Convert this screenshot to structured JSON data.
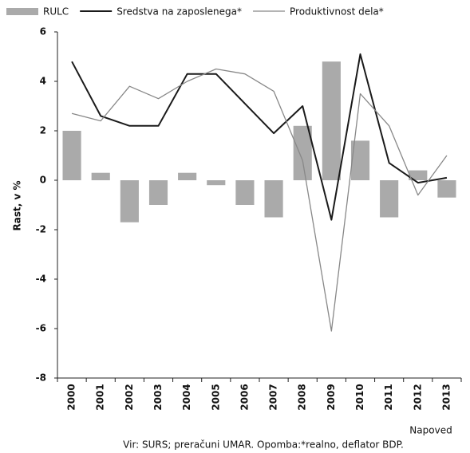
{
  "chart_data": {
    "type": "bar_line",
    "categories": [
      "2000",
      "2001",
      "2002",
      "2003",
      "2004",
      "2005",
      "2006",
      "2007",
      "2008",
      "2009",
      "2010",
      "2011",
      "2012",
      "2013"
    ],
    "series": [
      {
        "name": "RULC",
        "type": "bar",
        "color": "#aaaaaa",
        "values": [
          2.0,
          0.3,
          -1.7,
          -1.0,
          0.3,
          -0.2,
          -1.0,
          -1.5,
          2.2,
          4.8,
          1.6,
          -1.5,
          0.4,
          -0.7
        ]
      },
      {
        "name": "Sredstva na zaposlenega*",
        "type": "line",
        "color": "#1a1a1a",
        "values": [
          4.8,
          2.6,
          2.2,
          2.2,
          4.3,
          4.3,
          3.1,
          1.9,
          3.0,
          -1.6,
          5.1,
          0.7,
          -0.1,
          0.1
        ]
      },
      {
        "name": "Produktivnost dela*",
        "type": "line",
        "color": "#888888",
        "values": [
          2.7,
          2.4,
          3.8,
          3.3,
          4.0,
          4.5,
          4.3,
          3.6,
          0.8,
          -6.1,
          3.5,
          2.2,
          -0.6,
          1.0
        ]
      }
    ],
    "ylabel": "Rast, v %",
    "ylim": [
      -8,
      6
    ],
    "yticks": [
      -8,
      -6,
      -4,
      -2,
      0,
      2,
      4,
      6
    ],
    "annotation": "Napoved",
    "source": "Vir: SURS; preračuni UMAR. Opomba:*realno, deflator BDP."
  }
}
